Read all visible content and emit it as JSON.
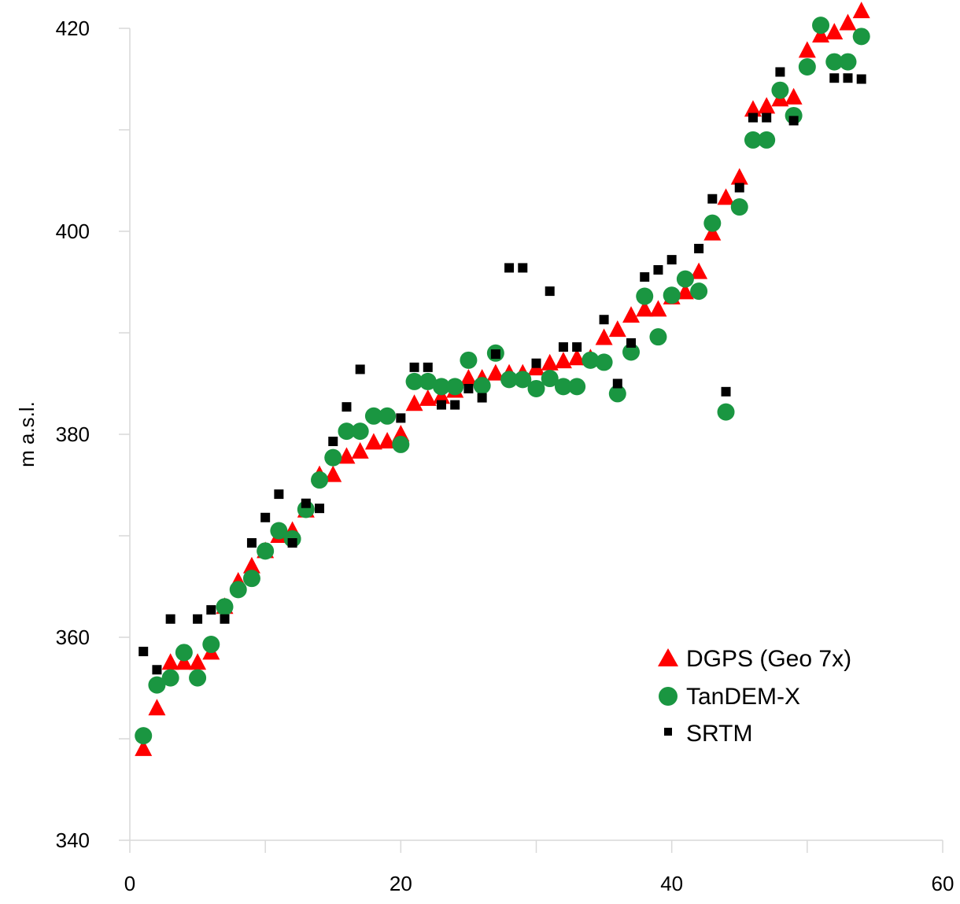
{
  "chart_data": {
    "type": "scatter",
    "title": "",
    "xlabel": "",
    "ylabel": "m a.s.l.",
    "xlim": [
      0,
      60
    ],
    "ylim": [
      340,
      420
    ],
    "x_ticks": [
      "0",
      "20",
      "40",
      "60"
    ],
    "y_ticks": [
      "340",
      "360",
      "380",
      "400",
      "420"
    ],
    "grid": false,
    "legend_position": "bottom-right",
    "series": [
      {
        "name": "DGPS (Geo 7x)",
        "marker": "triangle",
        "color": "#ff0000",
        "points": [
          [
            1,
            349.0
          ],
          [
            2,
            353.0
          ],
          [
            3,
            357.5
          ],
          [
            4,
            357.5
          ],
          [
            5,
            357.5
          ],
          [
            6,
            358.5
          ],
          [
            7,
            363.0
          ],
          [
            8,
            365.5
          ],
          [
            9,
            367.0
          ],
          [
            10,
            368.5
          ],
          [
            11,
            370.0
          ],
          [
            12,
            370.5
          ],
          [
            13,
            372.5
          ],
          [
            14,
            376.0
          ],
          [
            15,
            376.0
          ],
          [
            16,
            377.8
          ],
          [
            17,
            378.3
          ],
          [
            18,
            379.2
          ],
          [
            19,
            379.3
          ],
          [
            20,
            380.0
          ],
          [
            21,
            383.0
          ],
          [
            22,
            383.5
          ],
          [
            23,
            383.7
          ],
          [
            24,
            384.3
          ],
          [
            25,
            385.5
          ],
          [
            26,
            385.5
          ],
          [
            27,
            386.0
          ],
          [
            28,
            386.0
          ],
          [
            29,
            386.0
          ],
          [
            30,
            386.5
          ],
          [
            31,
            387.0
          ],
          [
            32,
            387.2
          ],
          [
            33,
            387.5
          ],
          [
            34,
            387.5
          ],
          [
            35,
            389.5
          ],
          [
            36,
            390.3
          ],
          [
            37,
            391.7
          ],
          [
            38,
            392.3
          ],
          [
            39,
            392.3
          ],
          [
            40,
            393.5
          ],
          [
            41,
            394.0
          ],
          [
            42,
            396.0
          ],
          [
            43,
            399.8
          ],
          [
            44,
            403.3
          ],
          [
            45,
            405.3
          ],
          [
            46,
            412.0
          ],
          [
            47,
            412.3
          ],
          [
            48,
            413.0
          ],
          [
            49,
            413.2
          ],
          [
            50,
            417.8
          ],
          [
            51,
            419.3
          ],
          [
            52,
            419.6
          ],
          [
            53,
            420.5
          ],
          [
            54,
            421.7
          ]
        ]
      },
      {
        "name": "TanDEM-X",
        "marker": "circle",
        "color": "#1a9641",
        "points": [
          [
            1,
            350.3
          ],
          [
            2,
            355.3
          ],
          [
            3,
            356.0
          ],
          [
            4,
            358.5
          ],
          [
            5,
            356.0
          ],
          [
            6,
            359.3
          ],
          [
            7,
            363.0
          ],
          [
            8,
            364.7
          ],
          [
            9,
            365.8
          ],
          [
            10,
            368.5
          ],
          [
            11,
            370.5
          ],
          [
            12,
            369.7
          ],
          [
            13,
            372.6
          ],
          [
            14,
            375.5
          ],
          [
            15,
            377.7
          ],
          [
            16,
            380.3
          ],
          [
            17,
            380.3
          ],
          [
            18,
            381.8
          ],
          [
            19,
            381.8
          ],
          [
            20,
            379.0
          ],
          [
            21,
            385.2
          ],
          [
            22,
            385.2
          ],
          [
            23,
            384.7
          ],
          [
            24,
            384.7
          ],
          [
            25,
            387.3
          ],
          [
            26,
            384.8
          ],
          [
            27,
            388.0
          ],
          [
            28,
            385.4
          ],
          [
            29,
            385.4
          ],
          [
            30,
            384.5
          ],
          [
            31,
            385.5
          ],
          [
            32,
            384.7
          ],
          [
            33,
            384.7
          ],
          [
            34,
            387.3
          ],
          [
            35,
            387.1
          ],
          [
            36,
            384.0
          ],
          [
            37,
            388.1
          ],
          [
            38,
            393.6
          ],
          [
            39,
            389.6
          ],
          [
            40,
            393.7
          ],
          [
            41,
            395.3
          ],
          [
            42,
            394.1
          ],
          [
            43,
            400.8
          ],
          [
            44,
            382.2
          ],
          [
            45,
            402.4
          ],
          [
            46,
            409.0
          ],
          [
            47,
            409.0
          ],
          [
            48,
            413.9
          ],
          [
            49,
            411.4
          ],
          [
            50,
            416.2
          ],
          [
            51,
            420.3
          ],
          [
            52,
            416.7
          ],
          [
            53,
            416.7
          ],
          [
            54,
            419.2
          ]
        ]
      },
      {
        "name": "SRTM",
        "marker": "square",
        "color": "#000000",
        "points": [
          [
            1,
            358.6
          ],
          [
            2,
            356.8
          ],
          [
            3,
            361.8
          ],
          [
            5,
            361.8
          ],
          [
            6,
            362.7
          ],
          [
            7,
            361.8
          ],
          [
            9,
            369.3
          ],
          [
            10,
            371.8
          ],
          [
            11,
            374.1
          ],
          [
            12,
            369.3
          ],
          [
            13,
            373.2
          ],
          [
            14,
            372.7
          ],
          [
            15,
            379.3
          ],
          [
            16,
            382.7
          ],
          [
            17,
            386.4
          ],
          [
            20,
            381.6
          ],
          [
            21,
            386.6
          ],
          [
            22,
            386.6
          ],
          [
            23,
            382.9
          ],
          [
            24,
            382.9
          ],
          [
            25,
            384.5
          ],
          [
            26,
            383.6
          ],
          [
            27,
            387.9
          ],
          [
            28,
            396.4
          ],
          [
            29,
            396.4
          ],
          [
            30,
            387.0
          ],
          [
            31,
            394.1
          ],
          [
            32,
            388.6
          ],
          [
            33,
            388.6
          ],
          [
            35,
            391.3
          ],
          [
            36,
            385.0
          ],
          [
            37,
            389.0
          ],
          [
            38,
            395.5
          ],
          [
            39,
            396.2
          ],
          [
            40,
            397.2
          ],
          [
            42,
            398.3
          ],
          [
            43,
            403.2
          ],
          [
            44,
            384.2
          ],
          [
            45,
            404.3
          ],
          [
            46,
            411.2
          ],
          [
            47,
            411.2
          ],
          [
            48,
            415.7
          ],
          [
            49,
            410.9
          ],
          [
            52,
            415.1
          ],
          [
            53,
            415.1
          ],
          [
            54,
            415.0
          ]
        ]
      }
    ]
  }
}
